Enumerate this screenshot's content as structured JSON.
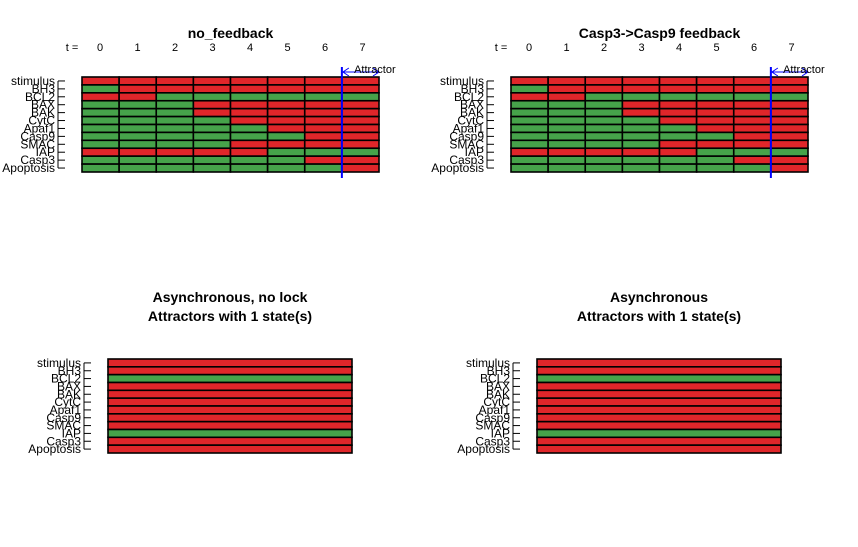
{
  "colors": {
    "on": "#e0262a",
    "off": "#46a34a",
    "border": "#000000",
    "attractor_marker": "#0000ff"
  },
  "chart_data": [
    {
      "type": "heatmap",
      "title": "no_feedback",
      "time_prefix": "t =",
      "time_labels": [
        "0",
        "1",
        "2",
        "3",
        "4",
        "5",
        "6",
        "7"
      ],
      "genes": [
        "stimulus",
        "BH3",
        "BCL2",
        "BAX",
        "BAK",
        "CytC",
        "Apaf1",
        "Casp9",
        "SMAC",
        "IAP",
        "Casp3",
        "Apoptosis"
      ],
      "matrix": [
        [
          1,
          1,
          1,
          1,
          1,
          1,
          1,
          1
        ],
        [
          0,
          1,
          1,
          1,
          1,
          1,
          1,
          1
        ],
        [
          1,
          1,
          0,
          0,
          0,
          0,
          0,
          0
        ],
        [
          0,
          0,
          0,
          1,
          1,
          1,
          1,
          1
        ],
        [
          0,
          0,
          0,
          1,
          1,
          1,
          1,
          1
        ],
        [
          0,
          0,
          0,
          0,
          1,
          1,
          1,
          1
        ],
        [
          0,
          0,
          0,
          0,
          0,
          1,
          1,
          1
        ],
        [
          0,
          0,
          0,
          0,
          0,
          0,
          1,
          1
        ],
        [
          0,
          0,
          0,
          0,
          1,
          1,
          1,
          1
        ],
        [
          1,
          1,
          1,
          1,
          1,
          0,
          0,
          0
        ],
        [
          0,
          0,
          0,
          0,
          0,
          0,
          1,
          1
        ],
        [
          0,
          0,
          0,
          0,
          0,
          0,
          0,
          1
        ]
      ],
      "attractor": {
        "label": "Attractor",
        "start_index": 7
      }
    },
    {
      "type": "heatmap",
      "title": "Casp3->Casp9 feedback",
      "time_prefix": "t =",
      "time_labels": [
        "0",
        "1",
        "2",
        "3",
        "4",
        "5",
        "6",
        "7"
      ],
      "genes": [
        "stimulus",
        "BH3",
        "BCL2",
        "BAX",
        "BAK",
        "CytC",
        "Apaf1",
        "Casp9",
        "SMAC",
        "IAP",
        "Casp3",
        "Apoptosis"
      ],
      "matrix": [
        [
          1,
          1,
          1,
          1,
          1,
          1,
          1,
          1
        ],
        [
          0,
          1,
          1,
          1,
          1,
          1,
          1,
          1
        ],
        [
          1,
          1,
          0,
          0,
          0,
          0,
          0,
          0
        ],
        [
          0,
          0,
          0,
          1,
          1,
          1,
          1,
          1
        ],
        [
          0,
          0,
          0,
          1,
          1,
          1,
          1,
          1
        ],
        [
          0,
          0,
          0,
          0,
          1,
          1,
          1,
          1
        ],
        [
          0,
          0,
          0,
          0,
          0,
          1,
          1,
          1
        ],
        [
          0,
          0,
          0,
          0,
          0,
          0,
          1,
          1
        ],
        [
          0,
          0,
          0,
          0,
          1,
          1,
          1,
          1
        ],
        [
          1,
          1,
          1,
          1,
          1,
          0,
          0,
          0
        ],
        [
          0,
          0,
          0,
          0,
          0,
          0,
          1,
          1
        ],
        [
          0,
          0,
          0,
          0,
          0,
          0,
          0,
          1
        ]
      ],
      "attractor": {
        "label": "Attractor",
        "start_index": 7
      }
    },
    {
      "type": "heatmap",
      "title": "Asynchronous, no lock",
      "subtitle": "Attractors with 1 state(s)",
      "genes": [
        "stimulus",
        "BH3",
        "BCL2",
        "BAX",
        "BAK",
        "CytC",
        "Apaf1",
        "Casp9",
        "SMAC",
        "IAP",
        "Casp3",
        "Apoptosis"
      ],
      "matrix": [
        [
          1
        ],
        [
          1
        ],
        [
          0
        ],
        [
          1
        ],
        [
          1
        ],
        [
          1
        ],
        [
          1
        ],
        [
          1
        ],
        [
          1
        ],
        [
          0
        ],
        [
          1
        ],
        [
          1
        ]
      ]
    },
    {
      "type": "heatmap",
      "title": "Asynchronous",
      "subtitle": "Attractors with 1 state(s)",
      "genes": [
        "stimulus",
        "BH3",
        "BCL2",
        "BAX",
        "BAK",
        "CytC",
        "Apaf1",
        "Casp9",
        "SMAC",
        "IAP",
        "Casp3",
        "Apoptosis"
      ],
      "matrix": [
        [
          1
        ],
        [
          1
        ],
        [
          0
        ],
        [
          1
        ],
        [
          1
        ],
        [
          1
        ],
        [
          1
        ],
        [
          1
        ],
        [
          1
        ],
        [
          0
        ],
        [
          1
        ],
        [
          1
        ]
      ]
    }
  ]
}
